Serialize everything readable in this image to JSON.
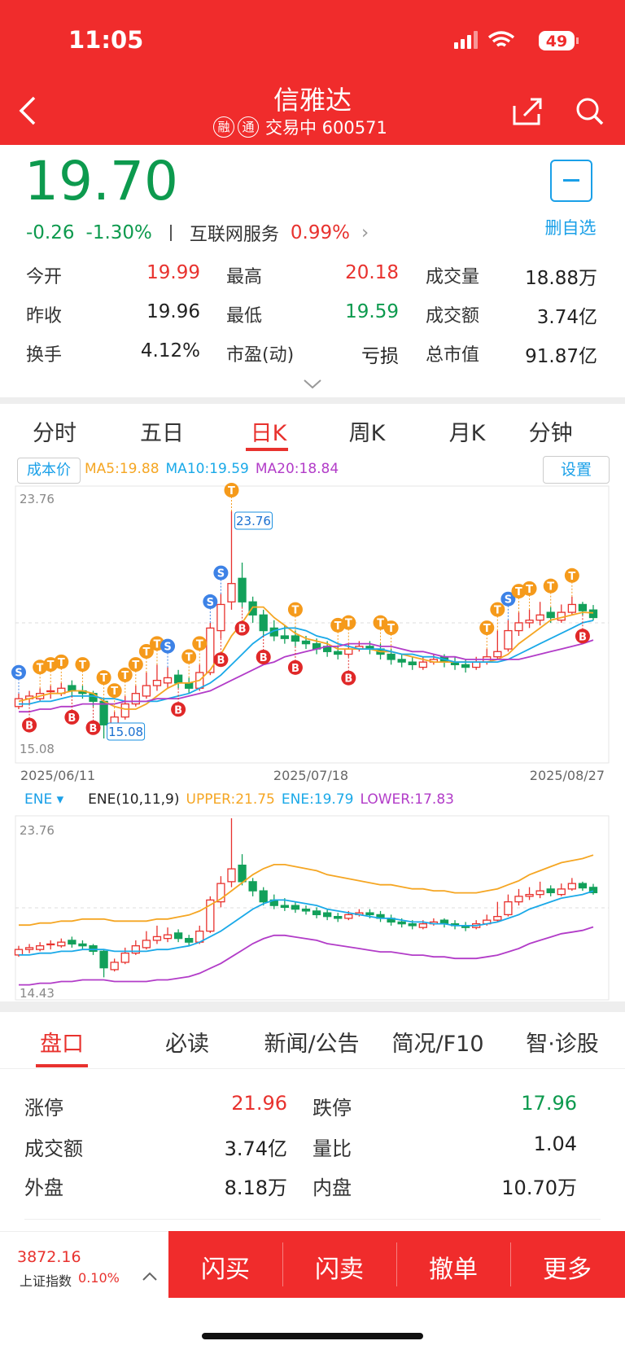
{
  "status": {
    "time": "11:05",
    "battery": "49"
  },
  "header": {
    "title": "信雅达",
    "badges": [
      "融",
      "通"
    ],
    "subtitle": "交易中 600571"
  },
  "quote": {
    "price": "19.70",
    "change": "-0.26",
    "change_pct": "-1.30%",
    "sector": "互联网服务",
    "sector_pct": "0.99%",
    "watch_label": "删自选"
  },
  "stats": [
    [
      {
        "label": "今开",
        "value": "19.99"
      },
      {
        "label": "最高",
        "value": "20.18"
      },
      {
        "label": "成交量",
        "value": "18.88万"
      }
    ],
    [
      {
        "label": "昨收",
        "value": "19.96"
      },
      {
        "label": "最低",
        "value": "19.59"
      },
      {
        "label": "成交额",
        "value": "3.74亿"
      }
    ],
    [
      {
        "label": "换手",
        "value": "4.12%"
      },
      {
        "label": "市盈(动)",
        "value": "亏损"
      },
      {
        "label": "总市值",
        "value": "91.87亿"
      }
    ]
  ],
  "tabs": [
    "分时",
    "五日",
    "日K",
    "周K",
    "月K",
    "分钟"
  ],
  "chart_data": [
    {
      "type": "candlestick",
      "cost_label": "成本价",
      "settings_label": "设置",
      "open": [
        16.3,
        16.6,
        16.6,
        16.9,
        16.8,
        17.1,
        16.9,
        16.8,
        16.5,
        15.5,
        15.9,
        16.4,
        16.7,
        17.1,
        17.2,
        17.5,
        17.2,
        17.0,
        17.6,
        19.2,
        20.3,
        21.2,
        20.3,
        19.8,
        19.3,
        19.0,
        19.0,
        18.8,
        18.7,
        18.6,
        18.4,
        18.3,
        18.5,
        18.6,
        18.5,
        18.3,
        18.1,
        18.0,
        17.8,
        18.0,
        18.2,
        18.0,
        17.9,
        17.8,
        18.0,
        18.2,
        18.5,
        19.2,
        19.5,
        19.6,
        19.9,
        19.6,
        19.9,
        20.2,
        19.99
      ],
      "high": [
        16.8,
        16.9,
        17.0,
        17.1,
        17.2,
        17.3,
        17.1,
        16.9,
        16.6,
        16.1,
        16.7,
        17.1,
        17.6,
        17.9,
        17.8,
        17.7,
        17.4,
        17.9,
        19.5,
        20.6,
        23.76,
        21.8,
        20.5,
        20.0,
        19.6,
        19.4,
        19.2,
        19.0,
        18.9,
        18.8,
        18.6,
        18.7,
        18.8,
        18.8,
        18.7,
        18.5,
        18.3,
        18.2,
        18.2,
        18.3,
        18.3,
        18.2,
        18.1,
        18.2,
        18.5,
        19.2,
        19.6,
        19.9,
        20.0,
        20.3,
        20.1,
        20.2,
        20.5,
        20.3,
        20.18
      ],
      "low": [
        16.2,
        16.4,
        16.5,
        16.6,
        16.7,
        16.7,
        16.6,
        16.3,
        15.08,
        15.4,
        15.8,
        16.3,
        16.6,
        16.9,
        17.0,
        17.0,
        16.8,
        16.9,
        17.5,
        18.9,
        20.0,
        20.1,
        19.5,
        19.0,
        18.8,
        18.7,
        18.6,
        18.5,
        18.3,
        18.2,
        18.1,
        18.2,
        18.4,
        18.3,
        18.1,
        17.9,
        17.8,
        17.7,
        17.7,
        17.9,
        17.8,
        17.7,
        17.6,
        17.7,
        17.9,
        18.1,
        18.4,
        19.0,
        19.3,
        19.4,
        19.5,
        19.5,
        19.8,
        19.8,
        19.59
      ],
      "close": [
        16.6,
        16.7,
        16.8,
        16.9,
        17.0,
        16.9,
        16.8,
        16.5,
        15.6,
        15.9,
        16.4,
        16.8,
        17.1,
        17.3,
        17.4,
        17.2,
        17.0,
        17.6,
        19.3,
        20.2,
        21.0,
        20.3,
        19.8,
        19.2,
        19.0,
        18.9,
        18.8,
        18.7,
        18.5,
        18.4,
        18.3,
        18.5,
        18.6,
        18.5,
        18.3,
        18.1,
        18.0,
        17.9,
        18.0,
        18.1,
        18.0,
        17.9,
        17.8,
        18.0,
        18.2,
        18.4,
        19.2,
        19.5,
        19.6,
        19.8,
        19.7,
        19.9,
        20.2,
        19.96,
        19.7
      ],
      "series": [
        {
          "name": "MA5:19.88",
          "color": "#f5a623",
          "values": [
            16.5,
            16.6,
            16.7,
            16.8,
            16.8,
            16.9,
            16.9,
            16.8,
            16.5,
            16.3,
            16.2,
            16.2,
            16.4,
            16.7,
            17.0,
            17.2,
            17.2,
            17.3,
            17.7,
            18.3,
            19.0,
            19.5,
            20.1,
            20.1,
            19.7,
            19.4,
            19.1,
            18.9,
            18.8,
            18.7,
            18.5,
            18.5,
            18.5,
            18.5,
            18.4,
            18.4,
            18.3,
            18.2,
            18.1,
            18.0,
            18.0,
            18.0,
            18.0,
            18.0,
            18.0,
            18.1,
            18.3,
            18.7,
            19.0,
            19.3,
            19.6,
            19.7,
            19.8,
            19.9,
            19.88
          ]
        },
        {
          "name": "MA10:19.59",
          "color": "#1aa9e8",
          "values": [
            16.4,
            16.4,
            16.5,
            16.5,
            16.6,
            16.7,
            16.7,
            16.7,
            16.6,
            16.6,
            16.5,
            16.5,
            16.5,
            16.5,
            16.6,
            16.7,
            16.8,
            17.0,
            17.2,
            17.5,
            17.9,
            18.3,
            18.7,
            19.0,
            19.2,
            19.3,
            19.3,
            19.2,
            19.0,
            18.9,
            18.7,
            18.6,
            18.5,
            18.5,
            18.5,
            18.4,
            18.3,
            18.3,
            18.2,
            18.2,
            18.1,
            18.0,
            18.0,
            18.0,
            18.0,
            18.0,
            18.1,
            18.3,
            18.5,
            18.7,
            18.9,
            19.1,
            19.3,
            19.5,
            19.59
          ]
        },
        {
          "name": "MA20:18.84",
          "color": "#b23cc8",
          "values": [
            16.1,
            16.1,
            16.2,
            16.2,
            16.3,
            16.3,
            16.4,
            16.4,
            16.4,
            16.4,
            16.5,
            16.5,
            16.5,
            16.6,
            16.6,
            16.6,
            16.7,
            16.8,
            16.9,
            17.1,
            17.3,
            17.5,
            17.7,
            17.9,
            18.0,
            18.2,
            18.3,
            18.4,
            18.5,
            18.6,
            18.6,
            18.7,
            18.7,
            18.7,
            18.6,
            18.6,
            18.5,
            18.4,
            18.4,
            18.3,
            18.2,
            18.2,
            18.1,
            18.1,
            18.1,
            18.1,
            18.1,
            18.1,
            18.2,
            18.3,
            18.4,
            18.5,
            18.6,
            18.7,
            18.84
          ]
        }
      ],
      "ylim": [
        15.08,
        23.76
      ],
      "yticks": [
        15.08,
        23.76
      ],
      "date_labels": [
        "2025/06/11",
        "2025/07/18",
        "2025/08/27"
      ],
      "annotations": [
        {
          "text": "23.76",
          "index": 20
        },
        {
          "text": "15.08",
          "index": 8
        }
      ],
      "signals": [
        {
          "label": "S",
          "index": 0
        },
        {
          "label": "T",
          "index": 2
        },
        {
          "label": "T",
          "index": 3
        },
        {
          "label": "T",
          "index": 4
        },
        {
          "label": "T",
          "index": 6
        },
        {
          "label": "T",
          "index": 8
        },
        {
          "label": "T",
          "index": 9
        },
        {
          "label": "T",
          "index": 10
        },
        {
          "label": "T",
          "index": 11
        },
        {
          "label": "T",
          "index": 12
        },
        {
          "label": "T",
          "index": 13
        },
        {
          "label": "S",
          "index": 14
        },
        {
          "label": "T",
          "index": 16
        },
        {
          "label": "T",
          "index": 17
        },
        {
          "label": "S",
          "index": 18
        },
        {
          "label": "S",
          "index": 19
        },
        {
          "label": "T",
          "index": 20
        },
        {
          "label": "T",
          "index": 26
        },
        {
          "label": "T",
          "index": 30
        },
        {
          "label": "T",
          "index": 31
        },
        {
          "label": "T",
          "index": 34
        },
        {
          "label": "T",
          "index": 35
        },
        {
          "label": "T",
          "index": 44
        },
        {
          "label": "T",
          "index": 45
        },
        {
          "label": "S",
          "index": 46
        },
        {
          "label": "T",
          "index": 47
        },
        {
          "label": "T",
          "index": 48
        },
        {
          "label": "T",
          "index": 50
        },
        {
          "label": "T",
          "index": 52
        },
        {
          "label": "B",
          "index": 1
        },
        {
          "label": "B",
          "index": 5
        },
        {
          "label": "B",
          "index": 7
        },
        {
          "label": "B",
          "index": 15
        },
        {
          "label": "B",
          "index": 19
        },
        {
          "label": "B",
          "index": 21
        },
        {
          "label": "B",
          "index": 23
        },
        {
          "label": "B",
          "index": 26
        },
        {
          "label": "B",
          "index": 31
        },
        {
          "label": "B",
          "index": 53
        }
      ]
    },
    {
      "type": "ene",
      "indicator": "ENE",
      "params": "ENE(10,11,9)",
      "series": [
        {
          "name": "UPPER:21.75",
          "color": "#f5a623",
          "values": [
            17.93,
            17.93,
            18.04,
            18.04,
            18.15,
            18.15,
            18.26,
            18.26,
            18.26,
            18.15,
            18.15,
            18.15,
            18.15,
            18.26,
            18.26,
            18.37,
            18.48,
            18.7,
            19.03,
            19.36,
            19.8,
            20.24,
            20.68,
            21.01,
            21.23,
            21.23,
            21.12,
            21.01,
            20.9,
            20.68,
            20.57,
            20.46,
            20.35,
            20.24,
            20.13,
            20.13,
            20.02,
            19.91,
            19.91,
            19.8,
            19.8,
            19.69,
            19.69,
            19.69,
            19.8,
            19.91,
            20.13,
            20.35,
            20.68,
            20.9,
            21.12,
            21.34,
            21.45,
            21.56,
            21.75
          ]
        },
        {
          "name": "ENE:19.79",
          "color": "#1aa9e8",
          "values": [
            16.3,
            16.3,
            16.4,
            16.4,
            16.5,
            16.5,
            16.6,
            16.6,
            16.6,
            16.5,
            16.5,
            16.5,
            16.5,
            16.6,
            16.6,
            16.7,
            16.8,
            17.0,
            17.3,
            17.6,
            18.0,
            18.4,
            18.8,
            19.1,
            19.3,
            19.3,
            19.2,
            19.1,
            19.0,
            18.8,
            18.7,
            18.6,
            18.5,
            18.4,
            18.3,
            18.3,
            18.2,
            18.1,
            18.1,
            18.0,
            18.0,
            17.9,
            17.9,
            17.9,
            18.0,
            18.1,
            18.3,
            18.5,
            18.8,
            19.0,
            19.2,
            19.4,
            19.5,
            19.6,
            19.79
          ]
        },
        {
          "name": "LOWER:17.83",
          "color": "#b23cc8",
          "values": [
            14.67,
            14.67,
            14.76,
            14.76,
            14.85,
            14.85,
            14.94,
            14.94,
            14.94,
            14.85,
            14.85,
            14.85,
            14.85,
            14.94,
            14.94,
            15.03,
            15.12,
            15.3,
            15.57,
            15.84,
            16.2,
            16.56,
            16.92,
            17.19,
            17.37,
            17.37,
            17.28,
            17.19,
            17.1,
            16.92,
            16.83,
            16.74,
            16.65,
            16.56,
            16.47,
            16.47,
            16.38,
            16.29,
            16.29,
            16.2,
            16.2,
            16.11,
            16.11,
            16.11,
            16.2,
            16.29,
            16.47,
            16.65,
            16.92,
            17.1,
            17.28,
            17.46,
            17.55,
            17.64,
            17.83
          ]
        }
      ],
      "ylim": [
        14.43,
        23.76
      ],
      "yticks": [
        14.43,
        23.76
      ]
    }
  ],
  "panel_tabs": [
    "盘口",
    "必读",
    "新闻/公告",
    "简况/F10",
    "智·诊股"
  ],
  "panel": [
    [
      {
        "label": "涨停",
        "value": "21.96"
      },
      {
        "label": "跌停",
        "value": "17.96"
      }
    ],
    [
      {
        "label": "成交额",
        "value": "3.74亿"
      },
      {
        "label": "量比",
        "value": "1.04"
      }
    ],
    [
      {
        "label": "外盘",
        "value": "8.18万"
      },
      {
        "label": "内盘",
        "value": "10.70万"
      }
    ]
  ],
  "footer": {
    "index_value": "3872.16",
    "index_name": "上证指数",
    "index_pct": "0.10%",
    "buttons": [
      "闪买",
      "闪卖",
      "撤单",
      "更多"
    ]
  }
}
